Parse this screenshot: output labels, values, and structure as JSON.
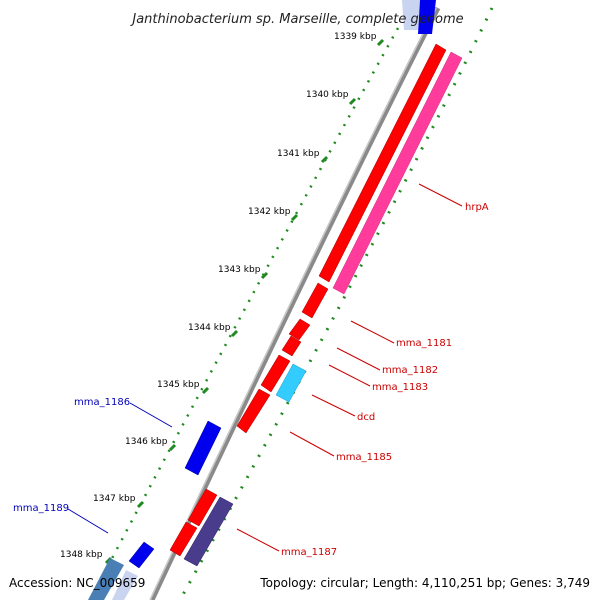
{
  "title": "Janthinobacterium sp. Marseille, complete genome",
  "accession": "Accession: NC_009659",
  "topology": "Topology: circular; Length: 4,110,251 bp; Genes: 3,749",
  "colors": {
    "backbone": "#8a8a8a",
    "gc_ticks": "#1f8a1f",
    "red_gene": "#ff0000",
    "pink_gene": "#ff3c9b",
    "cyan_gene": "#33ccff",
    "blue_gene": "#0000ee",
    "purple_gene": "#4a3c8c",
    "steel_gene": "#4a7fb5",
    "forward_label": "#cc0000",
    "reverse_label": "#0000bb"
  },
  "scale_labels": [
    "1339 kbp",
    "1340 kbp",
    "1341 kbp",
    "1342 kbp",
    "1343 kbp",
    "1344 kbp",
    "1345 kbp",
    "1346 kbp",
    "1347 kbp",
    "1348 kbp"
  ],
  "genes": [
    {
      "name": "hrpA",
      "strand": "reverse-track",
      "color": "pink"
    },
    {
      "name": "mma_1181",
      "strand": "forward",
      "color": "red"
    },
    {
      "name": "mma_1182",
      "strand": "forward",
      "color": "red"
    },
    {
      "name": "mma_1183",
      "strand": "forward",
      "color": "red"
    },
    {
      "name": "dcd",
      "strand": "forward",
      "color": "cyan"
    },
    {
      "name": "mma_1185",
      "strand": "forward",
      "color": "red"
    },
    {
      "name": "mma_1186",
      "strand": "reverse",
      "color": "blue"
    },
    {
      "name": "mma_1187",
      "strand": "forward",
      "color": "purple"
    },
    {
      "name": "mma_1189",
      "strand": "reverse",
      "color": "blue"
    }
  ]
}
